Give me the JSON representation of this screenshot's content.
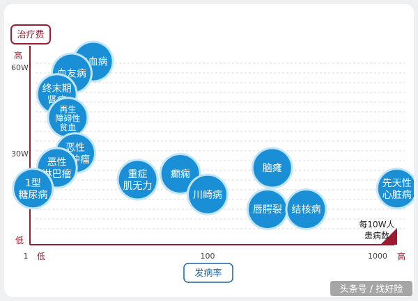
{
  "chart_data": {
    "type": "scatter",
    "y_axis_title": "治疗费",
    "x_axis_title": "发病率",
    "y_high_label": "高",
    "y_low_label": "低",
    "x_low_label": "低",
    "x_high_label": "高",
    "x_scale": "log",
    "x_ticks": [
      "1",
      "100",
      "1000"
    ],
    "y_ticks": [
      "60W",
      "30W"
    ],
    "corner_note": [
      "每10W人",
      "患病数"
    ],
    "grid": true,
    "colors": {
      "bubble": "#1a8fd6",
      "bubble_ring": "#bfe6fb",
      "axis": "#9b1c2e",
      "x_title": "#1565a8"
    },
    "points": [
      {
        "label": [
          "白血病"
        ],
        "x": 5.5,
        "y": 62
      },
      {
        "label": [
          "血友病"
        ],
        "x": 3.2,
        "y": 58
      },
      {
        "label": [
          "终末期",
          "肾病"
        ],
        "x": 2.2,
        "y": 51
      },
      {
        "label": [
          "再生",
          "障碍性",
          "贫血"
        ],
        "x": 2.9,
        "y": 43
      },
      {
        "label": [
          "恶性",
          "脑肿瘤"
        ],
        "x": 3.5,
        "y": 31
      },
      {
        "label": [
          "恶性",
          "淋巴瘤"
        ],
        "x": 2.2,
        "y": 26
      },
      {
        "label": [
          "1型",
          "糖尿病"
        ],
        "x": 1.2,
        "y": 19
      },
      {
        "label": [
          "重症",
          "肌无力"
        ],
        "x": 17,
        "y": 22
      },
      {
        "label": [
          "癫痫"
        ],
        "x": 50,
        "y": 24
      },
      {
        "label": [
          "川崎病"
        ],
        "x": 100,
        "y": 17
      },
      {
        "label": [
          "脑瘫"
        ],
        "x": 240,
        "y": 26
      },
      {
        "label": [
          "唇腭裂"
        ],
        "x": 225,
        "y": 12
      },
      {
        "label": [
          "结核病"
        ],
        "x": 380,
        "y": 12
      },
      {
        "label": [
          "先天性",
          "心脏病"
        ],
        "x": 1300,
        "y": 19
      }
    ]
  },
  "watermark": "头条号 / 找好险"
}
